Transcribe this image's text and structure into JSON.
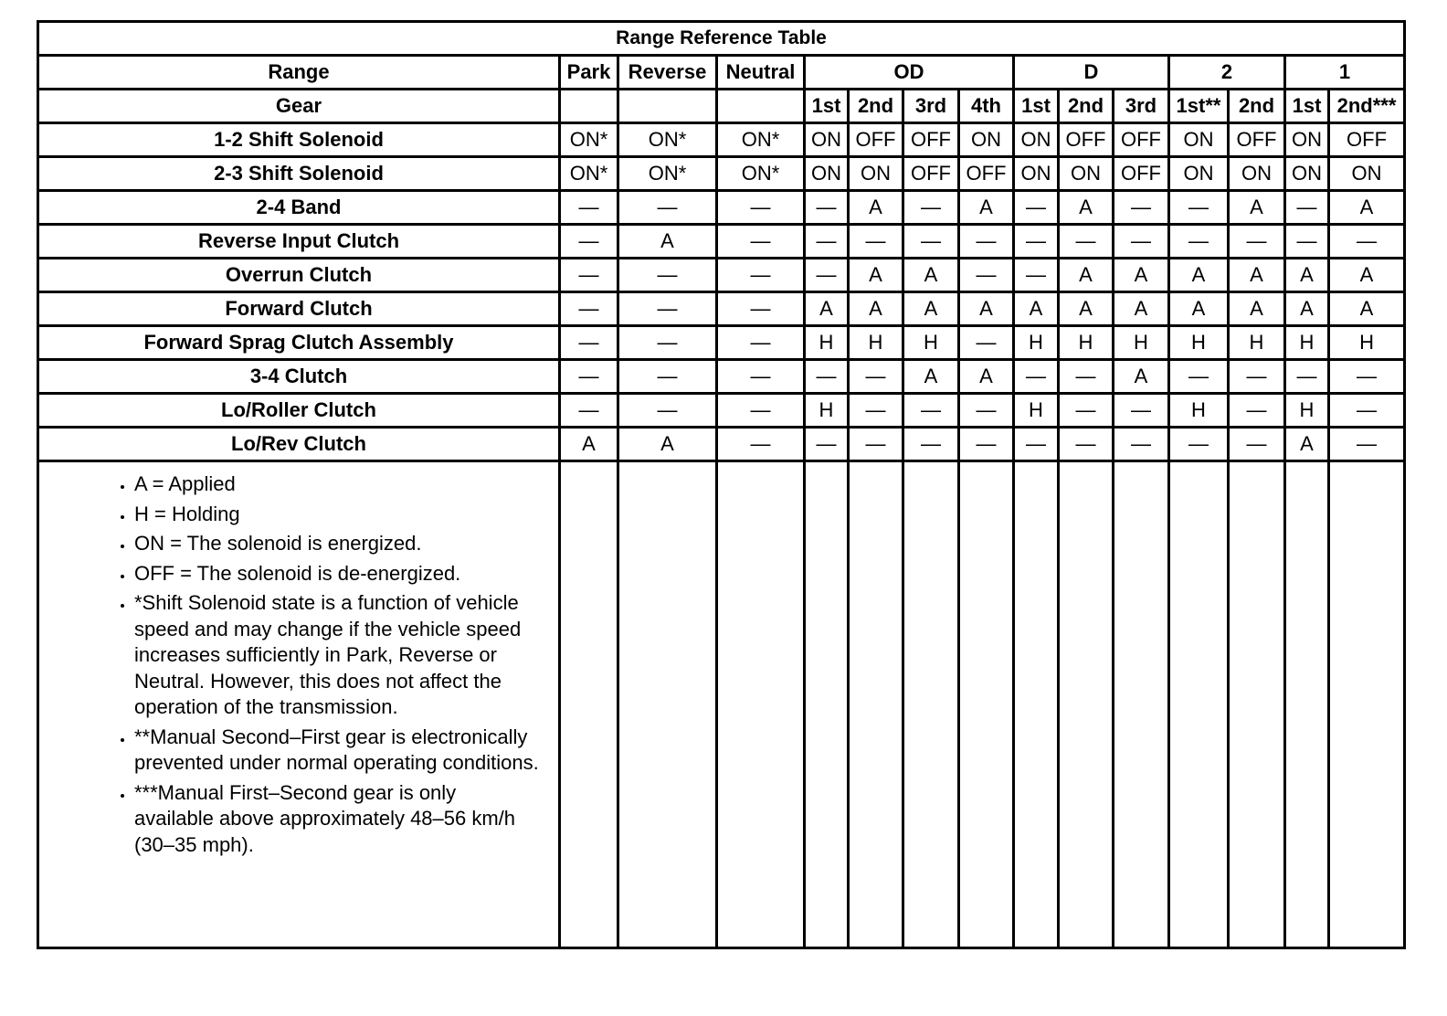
{
  "table": {
    "title": "Range Reference Table",
    "range_label": "Range",
    "gear_label": "Gear",
    "groups": [
      {
        "label": "Park"
      },
      {
        "label": "Reverse"
      },
      {
        "label": "Neutral"
      },
      {
        "label": "OD",
        "gears": [
          "1st",
          "2nd",
          "3rd",
          "4th"
        ]
      },
      {
        "label": "D",
        "gears": [
          "1st",
          "2nd",
          "3rd"
        ]
      },
      {
        "label": "2",
        "gears": [
          "1st**",
          "2nd"
        ]
      },
      {
        "label": "1",
        "gears": [
          "1st",
          "2nd***"
        ]
      }
    ],
    "rows": [
      {
        "label": "1-2 Shift Solenoid",
        "cells": [
          "ON*",
          "ON*",
          "ON*",
          "ON",
          "OFF",
          "OFF",
          "ON",
          "ON",
          "OFF",
          "OFF",
          "ON",
          "OFF",
          "ON",
          "OFF"
        ]
      },
      {
        "label": "2-3 Shift Solenoid",
        "cells": [
          "ON*",
          "ON*",
          "ON*",
          "ON",
          "ON",
          "OFF",
          "OFF",
          "ON",
          "ON",
          "OFF",
          "ON",
          "ON",
          "ON",
          "ON"
        ]
      },
      {
        "label": "2-4 Band",
        "cells": [
          "—",
          "—",
          "—",
          "—",
          "A",
          "—",
          "A",
          "—",
          "A",
          "—",
          "—",
          "A",
          "—",
          "A"
        ]
      },
      {
        "label": "Reverse Input Clutch",
        "cells": [
          "—",
          "A",
          "—",
          "—",
          "—",
          "—",
          "—",
          "—",
          "—",
          "—",
          "—",
          "—",
          "—",
          "—"
        ]
      },
      {
        "label": "Overrun Clutch",
        "cells": [
          "—",
          "—",
          "—",
          "—",
          "A",
          "A",
          "—",
          "—",
          "A",
          "A",
          "A",
          "A",
          "A",
          "A"
        ]
      },
      {
        "label": "Forward Clutch",
        "cells": [
          "—",
          "—",
          "—",
          "A",
          "A",
          "A",
          "A",
          "A",
          "A",
          "A",
          "A",
          "A",
          "A",
          "A"
        ]
      },
      {
        "label": "Forward Sprag Clutch Assembly",
        "cells": [
          "—",
          "—",
          "—",
          "H",
          "H",
          "H",
          "—",
          "H",
          "H",
          "H",
          "H",
          "H",
          "H",
          "H"
        ]
      },
      {
        "label": "3-4 Clutch",
        "cells": [
          "—",
          "—",
          "—",
          "—",
          "—",
          "A",
          "A",
          "—",
          "—",
          "A",
          "—",
          "—",
          "—",
          "—"
        ]
      },
      {
        "label": "Lo/Roller Clutch",
        "cells": [
          "—",
          "—",
          "—",
          "H",
          "—",
          "—",
          "—",
          "H",
          "—",
          "—",
          "H",
          "—",
          "H",
          "—"
        ]
      },
      {
        "label": "Lo/Rev Clutch",
        "cells": [
          "A",
          "A",
          "—",
          "—",
          "—",
          "—",
          "—",
          "—",
          "—",
          "—",
          "—",
          "—",
          "A",
          "—"
        ]
      }
    ],
    "notes": [
      "A = Applied",
      "H = Holding",
      "ON = The solenoid is energized.",
      "OFF = The solenoid is de-energized.",
      "*Shift Solenoid state is a function of vehicle speed and may change if the vehicle speed increases sufficiently in Park, Reverse or Neutral. However, this does not affect the operation of the transmission.",
      "**Manual Second–First gear is electronically prevented under normal operating conditions.",
      "***Manual First–Second gear is only available above approximately 48–56 km/h (30–35 mph)."
    ]
  }
}
